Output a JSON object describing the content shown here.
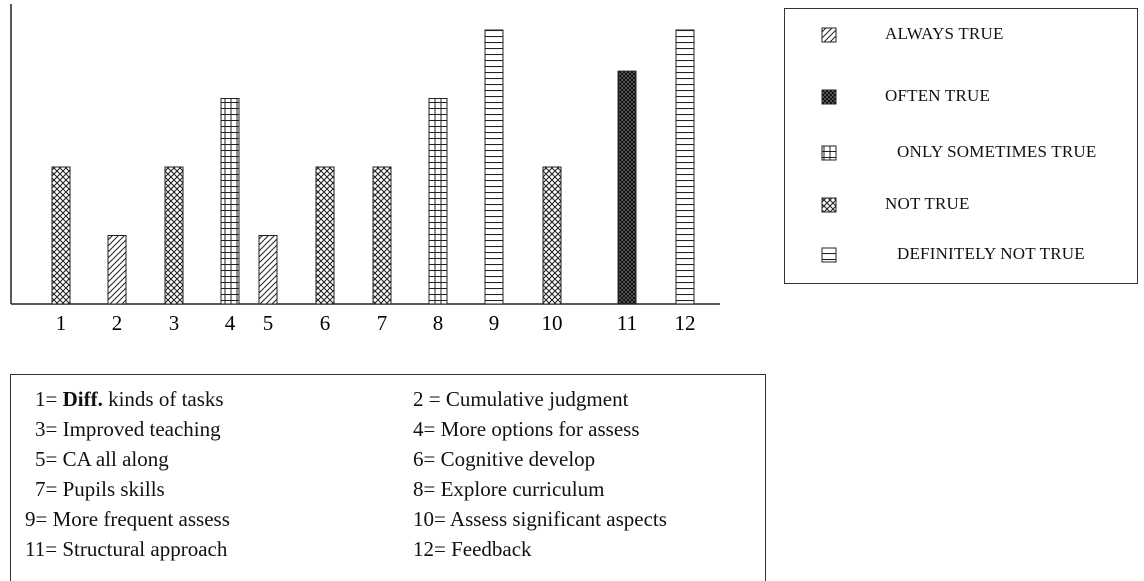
{
  "chart_data": {
    "type": "bar",
    "categories": [
      "1",
      "2",
      "3",
      "4",
      "5",
      "6",
      "7",
      "8",
      "9",
      "10",
      "11",
      "12"
    ],
    "bars": [
      {
        "category": "1",
        "series": "NOT TRUE",
        "value": 2
      },
      {
        "category": "2",
        "series": "ALWAYS TRUE",
        "value": 1
      },
      {
        "category": "3",
        "series": "NOT TRUE",
        "value": 2
      },
      {
        "category": "4",
        "series": "ONLY SOMETIMES TRUE",
        "value": 3
      },
      {
        "category": "5",
        "series": "ALWAYS TRUE",
        "value": 1
      },
      {
        "category": "6",
        "series": "NOT TRUE",
        "value": 2
      },
      {
        "category": "7",
        "series": "NOT TRUE",
        "value": 2
      },
      {
        "category": "8",
        "series": "ONLY SOMETIMES TRUE",
        "value": 3
      },
      {
        "category": "9",
        "series": "DEFINITELY NOT TRUE",
        "value": 4
      },
      {
        "category": "10",
        "series": "NOT TRUE",
        "value": 2
      },
      {
        "category": "11",
        "series": "OFTEN TRUE",
        "value": 3.4
      },
      {
        "category": "12",
        "series": "DEFINITELY NOT TRUE",
        "value": 4
      }
    ],
    "ylim": [
      0,
      4.2
    ],
    "grid": false,
    "legend_placement": "top-right",
    "legend": [
      {
        "label": "ALWAYS TRUE",
        "pattern": "diagonal-hatch"
      },
      {
        "label": "OFTEN TRUE",
        "pattern": "dense-crosshatch"
      },
      {
        "label": "ONLY SOMETIMES TRUE",
        "pattern": "grid"
      },
      {
        "label": "NOT TRUE",
        "pattern": "crosshatch"
      },
      {
        "label": "DEFINITELY NOT TRUE",
        "pattern": "horizontal-lines"
      }
    ]
  },
  "key": [
    {
      "num": "1=",
      "bold": "Diff.",
      "text": " kinds of tasks"
    },
    {
      "num": "2 =",
      "bold": "",
      "text": " Cumulative judgment"
    },
    {
      "num": "3=",
      "bold": "",
      "text": " Improved teaching"
    },
    {
      "num": "4=",
      "bold": "",
      "text": " More options for assess"
    },
    {
      "num": "5=",
      "bold": "",
      "text": " CA all along"
    },
    {
      "num": "6=",
      "bold": "",
      "text": " Cognitive develop"
    },
    {
      "num": "7=",
      "bold": "",
      "text": " Pupils skills"
    },
    {
      "num": "8=",
      "bold": "",
      "text": " Explore curriculum"
    },
    {
      "num": "9=",
      "bold": "",
      "text": " More frequent assess"
    },
    {
      "num": "10=",
      "bold": "",
      "text": " Assess significant aspects"
    },
    {
      "num": "11=",
      "bold": "",
      "text": " Structural approach"
    },
    {
      "num": "12=",
      "bold": "",
      "text": " Feedback"
    }
  ],
  "colors": {
    "ink": "#1a1a1a",
    "background": "#ffffff"
  }
}
